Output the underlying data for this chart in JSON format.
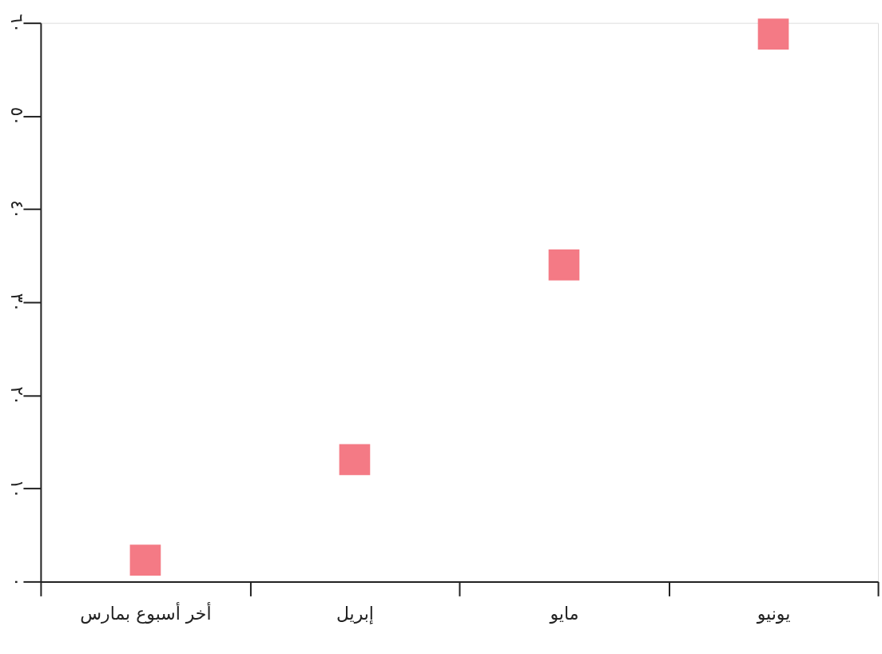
{
  "chart_data": {
    "type": "scatter",
    "marker": "square",
    "categories": [
      "أخر أسبوع بمارس",
      "إبريل",
      "مايو",
      "يونيو"
    ],
    "series": [
      {
        "color": "#f47a85",
        "values": [
          2.3,
          13.1,
          34.0,
          58.8
        ]
      }
    ],
    "ylim": [
      0,
      60
    ],
    "yticks": [
      {
        "value": 0,
        "label": "٠"
      },
      {
        "value": 10,
        "label": "١٠"
      },
      {
        "value": 20,
        "label": "٢٠"
      },
      {
        "value": 30,
        "label": "٣٠"
      },
      {
        "value": 40,
        "label": "٤٠"
      },
      {
        "value": 50,
        "label": "٥٠"
      },
      {
        "value": 60,
        "label": "٦٠"
      }
    ],
    "grid": false
  }
}
